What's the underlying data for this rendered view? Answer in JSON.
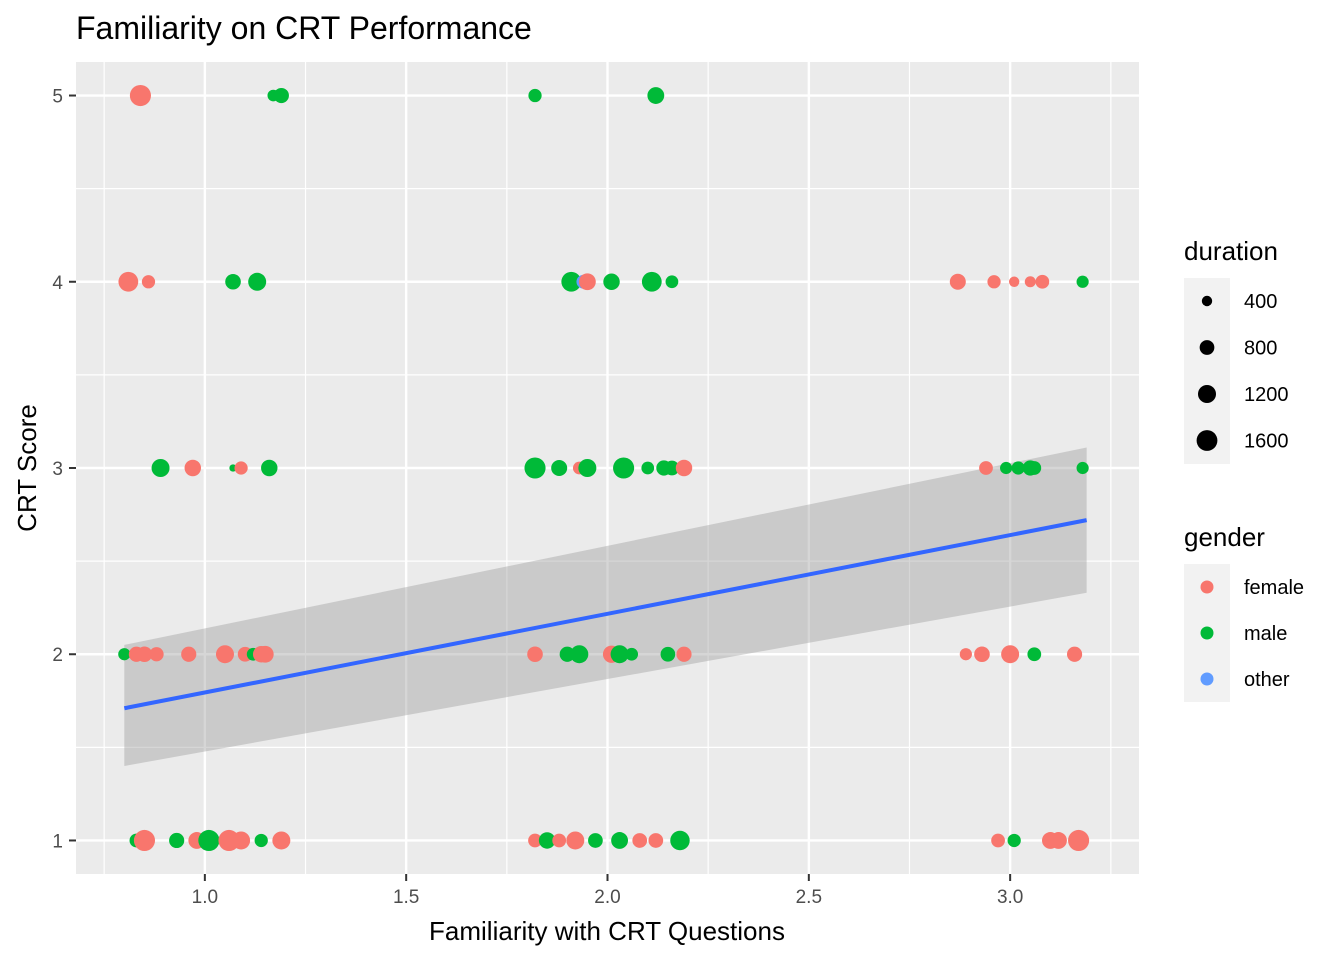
{
  "chart_data": {
    "type": "scatter",
    "title": "Familiarity on CRT Performance",
    "xlabel": "Familiarity with CRT Questions",
    "ylabel": "CRT Score",
    "xlim": [
      0.68,
      3.32
    ],
    "ylim": [
      0.82,
      5.18
    ],
    "x_ticks": [
      1.0,
      1.5,
      2.0,
      2.5,
      3.0
    ],
    "x_tick_labels": [
      "1.0",
      "1.5",
      "2.0",
      "2.5",
      "3.0"
    ],
    "y_ticks": [
      1,
      2,
      3,
      4,
      5
    ],
    "y_tick_labels": [
      "1",
      "2",
      "3",
      "4",
      "5"
    ],
    "grid": true,
    "colors": {
      "female": "#F8766D",
      "male": "#00BA38",
      "other": "#619CFF",
      "trend": "#3366FF",
      "band": "#999999",
      "panel": "#EBEBEB",
      "grid": "#FFFFFF",
      "size_key": "#000000"
    },
    "legend_duration": {
      "title": "duration",
      "position": "right",
      "entries": [
        {
          "label": "400",
          "value": 400
        },
        {
          "label": "800",
          "value": 800
        },
        {
          "label": "1200",
          "value": 1200
        },
        {
          "label": "1600",
          "value": 1600
        }
      ]
    },
    "legend_gender": {
      "title": "gender",
      "position": "right",
      "entries": [
        {
          "label": "female",
          "key": "female"
        },
        {
          "label": "male",
          "key": "male"
        },
        {
          "label": "other",
          "key": "other"
        }
      ]
    },
    "trend": {
      "x": [
        0.8,
        3.19
      ],
      "y": [
        1.71,
        2.72
      ],
      "band_upper": [
        2.05,
        3.11
      ],
      "band_lower": [
        1.4,
        2.33
      ]
    },
    "points": [
      {
        "x": 0.84,
        "y": 5,
        "gender": "female",
        "duration": 1650
      },
      {
        "x": 1.17,
        "y": 5,
        "gender": "male",
        "duration": 500
      },
      {
        "x": 1.19,
        "y": 5,
        "gender": "male",
        "duration": 850
      },
      {
        "x": 1.82,
        "y": 5,
        "gender": "male",
        "duration": 650
      },
      {
        "x": 2.12,
        "y": 5,
        "gender": "male",
        "duration": 1050
      },
      {
        "x": 0.81,
        "y": 4,
        "gender": "female",
        "duration": 1450
      },
      {
        "x": 0.86,
        "y": 4,
        "gender": "female",
        "duration": 650
      },
      {
        "x": 1.07,
        "y": 4,
        "gender": "male",
        "duration": 900
      },
      {
        "x": 1.13,
        "y": 4,
        "gender": "male",
        "duration": 1200
      },
      {
        "x": 1.91,
        "y": 4,
        "gender": "male",
        "duration": 1450
      },
      {
        "x": 1.94,
        "y": 4,
        "gender": "other",
        "duration": 700
      },
      {
        "x": 1.95,
        "y": 4,
        "gender": "female",
        "duration": 1050
      },
      {
        "x": 2.01,
        "y": 4,
        "gender": "male",
        "duration": 1000
      },
      {
        "x": 2.11,
        "y": 4,
        "gender": "male",
        "duration": 1450
      },
      {
        "x": 2.16,
        "y": 4,
        "gender": "male",
        "duration": 600
      },
      {
        "x": 2.87,
        "y": 4,
        "gender": "female",
        "duration": 950
      },
      {
        "x": 2.96,
        "y": 4,
        "gender": "female",
        "duration": 650
      },
      {
        "x": 3.01,
        "y": 4,
        "gender": "female",
        "duration": 400
      },
      {
        "x": 3.05,
        "y": 4,
        "gender": "female",
        "duration": 450
      },
      {
        "x": 3.08,
        "y": 4,
        "gender": "female",
        "duration": 700
      },
      {
        "x": 3.18,
        "y": 4,
        "gender": "male",
        "duration": 550
      },
      {
        "x": 0.89,
        "y": 3,
        "gender": "male",
        "duration": 1200
      },
      {
        "x": 0.97,
        "y": 3,
        "gender": "female",
        "duration": 1000
      },
      {
        "x": 1.07,
        "y": 3,
        "gender": "male",
        "duration": 200
      },
      {
        "x": 1.09,
        "y": 3,
        "gender": "female",
        "duration": 650
      },
      {
        "x": 1.16,
        "y": 3,
        "gender": "male",
        "duration": 1000
      },
      {
        "x": 1.82,
        "y": 3,
        "gender": "male",
        "duration": 1650
      },
      {
        "x": 1.88,
        "y": 3,
        "gender": "male",
        "duration": 950
      },
      {
        "x": 1.93,
        "y": 3,
        "gender": "female",
        "duration": 600
      },
      {
        "x": 1.95,
        "y": 3,
        "gender": "male",
        "duration": 1200
      },
      {
        "x": 2.04,
        "y": 3,
        "gender": "male",
        "duration": 1650
      },
      {
        "x": 2.1,
        "y": 3,
        "gender": "male",
        "duration": 600
      },
      {
        "x": 2.14,
        "y": 3,
        "gender": "male",
        "duration": 850
      },
      {
        "x": 2.16,
        "y": 3,
        "gender": "male",
        "duration": 800
      },
      {
        "x": 2.19,
        "y": 3,
        "gender": "female",
        "duration": 1000
      },
      {
        "x": 2.94,
        "y": 3,
        "gender": "female",
        "duration": 700
      },
      {
        "x": 2.99,
        "y": 3,
        "gender": "male",
        "duration": 550
      },
      {
        "x": 3.02,
        "y": 3,
        "gender": "male",
        "duration": 650
      },
      {
        "x": 3.05,
        "y": 3,
        "gender": "male",
        "duration": 850
      },
      {
        "x": 3.06,
        "y": 3,
        "gender": "male",
        "duration": 700
      },
      {
        "x": 3.18,
        "y": 3,
        "gender": "male",
        "duration": 550
      },
      {
        "x": 0.8,
        "y": 2,
        "gender": "male",
        "duration": 550
      },
      {
        "x": 0.83,
        "y": 2,
        "gender": "female",
        "duration": 850
      },
      {
        "x": 0.85,
        "y": 2,
        "gender": "female",
        "duration": 900
      },
      {
        "x": 0.88,
        "y": 2,
        "gender": "female",
        "duration": 750
      },
      {
        "x": 0.96,
        "y": 2,
        "gender": "female",
        "duration": 850
      },
      {
        "x": 1.05,
        "y": 2,
        "gender": "female",
        "duration": 1200
      },
      {
        "x": 1.1,
        "y": 2,
        "gender": "female",
        "duration": 800
      },
      {
        "x": 1.12,
        "y": 2,
        "gender": "male",
        "duration": 600
      },
      {
        "x": 1.14,
        "y": 2,
        "gender": "female",
        "duration": 1000
      },
      {
        "x": 1.15,
        "y": 2,
        "gender": "female",
        "duration": 1050
      },
      {
        "x": 1.82,
        "y": 2,
        "gender": "female",
        "duration": 900
      },
      {
        "x": 1.9,
        "y": 2,
        "gender": "male",
        "duration": 850
      },
      {
        "x": 1.93,
        "y": 2,
        "gender": "male",
        "duration": 1200
      },
      {
        "x": 2.01,
        "y": 2,
        "gender": "female",
        "duration": 1100
      },
      {
        "x": 2.03,
        "y": 2,
        "gender": "male",
        "duration": 1200
      },
      {
        "x": 2.06,
        "y": 2,
        "gender": "male",
        "duration": 600
      },
      {
        "x": 2.15,
        "y": 2,
        "gender": "male",
        "duration": 800
      },
      {
        "x": 2.19,
        "y": 2,
        "gender": "female",
        "duration": 850
      },
      {
        "x": 2.89,
        "y": 2,
        "gender": "female",
        "duration": 550
      },
      {
        "x": 2.93,
        "y": 2,
        "gender": "female",
        "duration": 900
      },
      {
        "x": 3.0,
        "y": 2,
        "gender": "female",
        "duration": 1200
      },
      {
        "x": 3.06,
        "y": 2,
        "gender": "male",
        "duration": 700
      },
      {
        "x": 3.16,
        "y": 2,
        "gender": "female",
        "duration": 850
      },
      {
        "x": 0.83,
        "y": 1,
        "gender": "male",
        "duration": 700
      },
      {
        "x": 0.85,
        "y": 1,
        "gender": "female",
        "duration": 1650
      },
      {
        "x": 0.93,
        "y": 1,
        "gender": "male",
        "duration": 850
      },
      {
        "x": 0.98,
        "y": 1,
        "gender": "female",
        "duration": 1050
      },
      {
        "x": 1.01,
        "y": 1,
        "gender": "male",
        "duration": 1650
      },
      {
        "x": 1.06,
        "y": 1,
        "gender": "female",
        "duration": 1650
      },
      {
        "x": 1.09,
        "y": 1,
        "gender": "female",
        "duration": 1200
      },
      {
        "x": 1.14,
        "y": 1,
        "gender": "male",
        "duration": 650
      },
      {
        "x": 1.19,
        "y": 1,
        "gender": "female",
        "duration": 1200
      },
      {
        "x": 1.82,
        "y": 1,
        "gender": "female",
        "duration": 700
      },
      {
        "x": 1.85,
        "y": 1,
        "gender": "male",
        "duration": 1000
      },
      {
        "x": 1.88,
        "y": 1,
        "gender": "female",
        "duration": 700
      },
      {
        "x": 1.92,
        "y": 1,
        "gender": "female",
        "duration": 1200
      },
      {
        "x": 1.97,
        "y": 1,
        "gender": "male",
        "duration": 800
      },
      {
        "x": 2.03,
        "y": 1,
        "gender": "male",
        "duration": 1050
      },
      {
        "x": 2.08,
        "y": 1,
        "gender": "female",
        "duration": 800
      },
      {
        "x": 2.12,
        "y": 1,
        "gender": "female",
        "duration": 800
      },
      {
        "x": 2.18,
        "y": 1,
        "gender": "male",
        "duration": 1400
      },
      {
        "x": 2.97,
        "y": 1,
        "gender": "female",
        "duration": 700
      },
      {
        "x": 3.01,
        "y": 1,
        "gender": "male",
        "duration": 650
      },
      {
        "x": 3.1,
        "y": 1,
        "gender": "female",
        "duration": 1050
      },
      {
        "x": 3.12,
        "y": 1,
        "gender": "female",
        "duration": 1050
      },
      {
        "x": 3.17,
        "y": 1,
        "gender": "female",
        "duration": 1650
      }
    ]
  }
}
